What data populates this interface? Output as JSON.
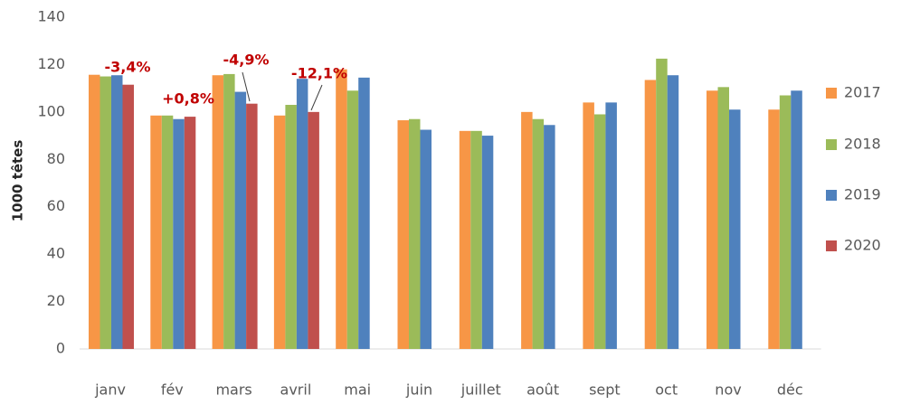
{
  "chart_data": {
    "type": "bar",
    "y_axis_label": "1000 têtes",
    "categories": [
      "janv",
      "fév",
      "mars",
      "avril",
      "mai",
      "juin",
      "juillet",
      "août",
      "sept",
      "oct",
      "nov",
      "déc"
    ],
    "series": [
      {
        "name": "2017",
        "color": "#f79646",
        "values": [
          115.7,
          98.5,
          115.5,
          98.5,
          118,
          96.5,
          92,
          100,
          104,
          113.5,
          109,
          101
        ]
      },
      {
        "name": "2018",
        "color": "#9bbb59",
        "values": [
          115,
          98.5,
          116,
          103,
          109,
          97,
          92,
          97,
          99,
          122.5,
          110.5,
          107
        ]
      },
      {
        "name": "2019",
        "color": "#4f81bd",
        "values": [
          115.5,
          97,
          108.5,
          114,
          114.5,
          92.5,
          90,
          94.5,
          104,
          115.5,
          101,
          109
        ]
      },
      {
        "name": "2020",
        "color": "#c0504d",
        "values": [
          111.5,
          98,
          103.5,
          100,
          null,
          null,
          null,
          null,
          null,
          null,
          null,
          null
        ]
      }
    ],
    "ylim": [
      0,
      140
    ],
    "yticks": [
      0,
      20,
      40,
      60,
      80,
      100,
      120,
      140
    ],
    "grid": false,
    "legend": "right",
    "annotations": [
      "-3,4%",
      "+0,8%",
      "-4,9%",
      "-12,1%"
    ]
  }
}
